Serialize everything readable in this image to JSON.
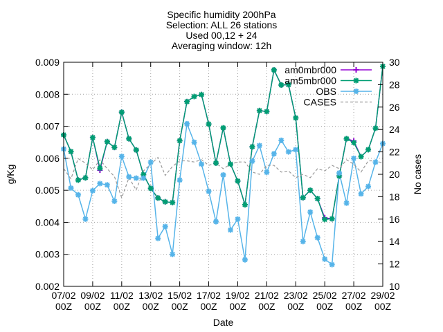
{
  "chart_data": {
    "type": "line",
    "title_lines": [
      "Specific humidity 200hPa",
      "Selection: ALL      26 stations",
      "Used 00,12 + 24",
      "Averaging window: 12h"
    ],
    "xlabel": "Date",
    "ylabel": "g/Kg",
    "y2label": "No cases",
    "ylim": [
      0.002,
      0.009
    ],
    "y2lim": [
      10,
      30
    ],
    "yticks": [
      "0.002",
      "0.003",
      "0.004",
      "0.005",
      "0.006",
      "0.007",
      "0.008",
      "0.009"
    ],
    "y2ticks": [
      "10",
      "12",
      "14",
      "16",
      "18",
      "20",
      "22",
      "24",
      "26",
      "28",
      "30"
    ],
    "x_range": [
      0,
      44
    ],
    "x_ticks": [
      {
        "x": 0,
        "date": "07/02",
        "hour": "00Z"
      },
      {
        "x": 4,
        "date": "09/02",
        "hour": "00Z"
      },
      {
        "x": 8,
        "date": "11/02",
        "hour": "00Z"
      },
      {
        "x": 12,
        "date": "13/02",
        "hour": "00Z"
      },
      {
        "x": 16,
        "date": "15/02",
        "hour": "00Z"
      },
      {
        "x": 20,
        "date": "17/02",
        "hour": "00Z"
      },
      {
        "x": 24,
        "date": "19/02",
        "hour": "00Z"
      },
      {
        "x": 28,
        "date": "21/02",
        "hour": "00Z"
      },
      {
        "x": 32,
        "date": "23/02",
        "hour": "00Z"
      },
      {
        "x": 36,
        "date": "25/02",
        "hour": "00Z"
      },
      {
        "x": 40,
        "date": "27/02",
        "hour": "00Z"
      },
      {
        "x": 44,
        "date": "29/02",
        "hour": "00Z"
      }
    ],
    "grid": true,
    "legend_position": "top-right",
    "series": [
      {
        "name": "am0mbr000",
        "color": "#9400d3",
        "marker": "plus",
        "axis": "left",
        "values": [
          0.00673,
          0.00621,
          0.00532,
          0.00539,
          0.00665,
          0.00563,
          0.00652,
          0.00634,
          0.00744,
          0.00661,
          0.00626,
          0.00549,
          0.00506,
          0.00476,
          0.00464,
          0.00462,
          0.00655,
          0.00777,
          0.00793,
          0.00799,
          0.00707,
          0.00585,
          0.00695,
          0.00582,
          0.00529,
          0.00455,
          0.00636,
          0.00749,
          0.00746,
          0.00876,
          0.00829,
          0.0083,
          0.00726,
          0.00477,
          0.005,
          0.00474,
          0.00414,
          0.00411,
          0.00545,
          0.00661,
          0.00654,
          0.00605,
          0.00627,
          0.00694,
          0.00887
        ]
      },
      {
        "name": "am5mbr000",
        "color": "#009e73",
        "marker": "star",
        "axis": "left",
        "values": [
          0.00673,
          0.00621,
          0.00532,
          0.00539,
          0.00665,
          0.00569,
          0.00652,
          0.00634,
          0.00744,
          0.00661,
          0.00626,
          0.00549,
          0.00506,
          0.00476,
          0.00464,
          0.00462,
          0.00655,
          0.00777,
          0.00793,
          0.00799,
          0.00707,
          0.00585,
          0.00695,
          0.00582,
          0.00529,
          0.00455,
          0.00636,
          0.00749,
          0.00746,
          0.00876,
          0.00829,
          0.0083,
          0.00726,
          0.00477,
          0.005,
          0.00474,
          0.00409,
          0.00411,
          0.00545,
          0.00661,
          0.00649,
          0.00605,
          0.00627,
          0.00694,
          0.00887
        ]
      },
      {
        "name": "OBS",
        "color": "#56b4e9",
        "marker": "star",
        "axis": "left",
        "values": [
          0.00629,
          0.00507,
          0.00486,
          0.0041,
          0.00499,
          0.00521,
          0.00517,
          0.00466,
          0.00606,
          0.00542,
          0.00538,
          0.00538,
          0.00588,
          0.0035,
          0.00387,
          0.003,
          0.00532,
          0.00708,
          0.0065,
          0.00582,
          0.00497,
          0.00402,
          0.00548,
          0.00376,
          0.0041,
          0.00283,
          0.00591,
          0.0064,
          0.00556,
          0.00614,
          0.00656,
          0.0062,
          0.00627,
          0.0034,
          0.00432,
          0.00352,
          0.00285,
          0.00268,
          0.00554,
          0.0046,
          0.006,
          0.00489,
          0.00512,
          0.00588,
          0.00646
        ]
      },
      {
        "name": "CASES",
        "color": "#999999",
        "marker": "none",
        "dashed": true,
        "axis": "right",
        "values": [
          20.5,
          19.6,
          21.4,
          21.0,
          20.4,
          21.3,
          20.5,
          19.8,
          17.9,
          19.7,
          18.6,
          20.3,
          20.9,
          21.5,
          19.9,
          20.7,
          21.2,
          21.2,
          21.1,
          21.3,
          20.8,
          21.0,
          20.5,
          20.9,
          21.1,
          21.1,
          20.2,
          20.0,
          20.8,
          20.8,
          20.2,
          20.3,
          19.7,
          20.0,
          19.7,
          20.5,
          20.3,
          20.8,
          20.5,
          21.3,
          20.9,
          20.2,
          21.2,
          21.2,
          21.0
        ]
      }
    ]
  }
}
